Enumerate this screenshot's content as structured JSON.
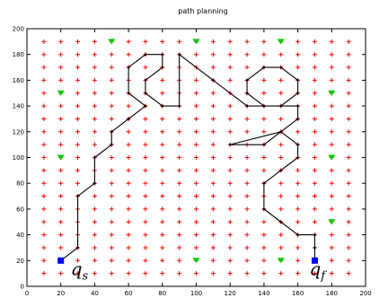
{
  "chart_data": {
    "type": "scatter",
    "title": "path planning",
    "xlim": [
      0,
      200
    ],
    "ylim": [
      0,
      200
    ],
    "xticks": [
      0,
      20,
      40,
      60,
      80,
      100,
      120,
      140,
      160,
      180,
      200
    ],
    "yticks": [
      0,
      20,
      40,
      60,
      80,
      100,
      120,
      140,
      160,
      180,
      200
    ],
    "grid_markers": {
      "marker": "+",
      "color": "#ff0000",
      "x_start": 10,
      "x_end": 190,
      "y_start": 10,
      "y_end": 190,
      "step": 10
    },
    "start": {
      "label": "q",
      "subscript": "s",
      "x": 20,
      "y": 20,
      "color": "#0000ff"
    },
    "goal": {
      "label": "q",
      "subscript": "f",
      "x": 170,
      "y": 20,
      "color": "#0000ff"
    },
    "obstacles": {
      "color": "#00cc00",
      "points": [
        [
          50,
          190
        ],
        [
          100,
          190
        ],
        [
          150,
          190
        ],
        [
          20,
          150
        ],
        [
          180,
          150
        ],
        [
          20,
          100
        ],
        [
          180,
          100
        ],
        [
          180,
          50
        ],
        [
          100,
          20
        ],
        [
          150,
          20
        ]
      ]
    },
    "path": {
      "color": "#000000",
      "points": [
        [
          20,
          20
        ],
        [
          30,
          30
        ],
        [
          30,
          70
        ],
        [
          40,
          80
        ],
        [
          40,
          100
        ],
        [
          50,
          110
        ],
        [
          50,
          120
        ],
        [
          60,
          130
        ],
        [
          70,
          140
        ],
        [
          60,
          150
        ],
        [
          60,
          170
        ],
        [
          70,
          180
        ],
        [
          80,
          180
        ],
        [
          80,
          170
        ],
        [
          70,
          160
        ],
        [
          70,
          150
        ],
        [
          80,
          140
        ],
        [
          90,
          140
        ],
        [
          90,
          180
        ],
        [
          110,
          160
        ],
        [
          130,
          140
        ],
        [
          150,
          140
        ],
        [
          160,
          150
        ],
        [
          160,
          160
        ],
        [
          150,
          170
        ],
        [
          140,
          170
        ],
        [
          130,
          160
        ],
        [
          130,
          150
        ],
        [
          140,
          140
        ],
        [
          160,
          140
        ],
        [
          160,
          130
        ],
        [
          150,
          120
        ],
        [
          140,
          110
        ],
        [
          120,
          110
        ],
        [
          150,
          120
        ],
        [
          160,
          110
        ],
        [
          160,
          100
        ],
        [
          150,
          90
        ],
        [
          140,
          80
        ],
        [
          140,
          60
        ],
        [
          150,
          50
        ],
        [
          160,
          40
        ],
        [
          170,
          40
        ],
        [
          170,
          30
        ],
        [
          170,
          20
        ]
      ]
    }
  }
}
